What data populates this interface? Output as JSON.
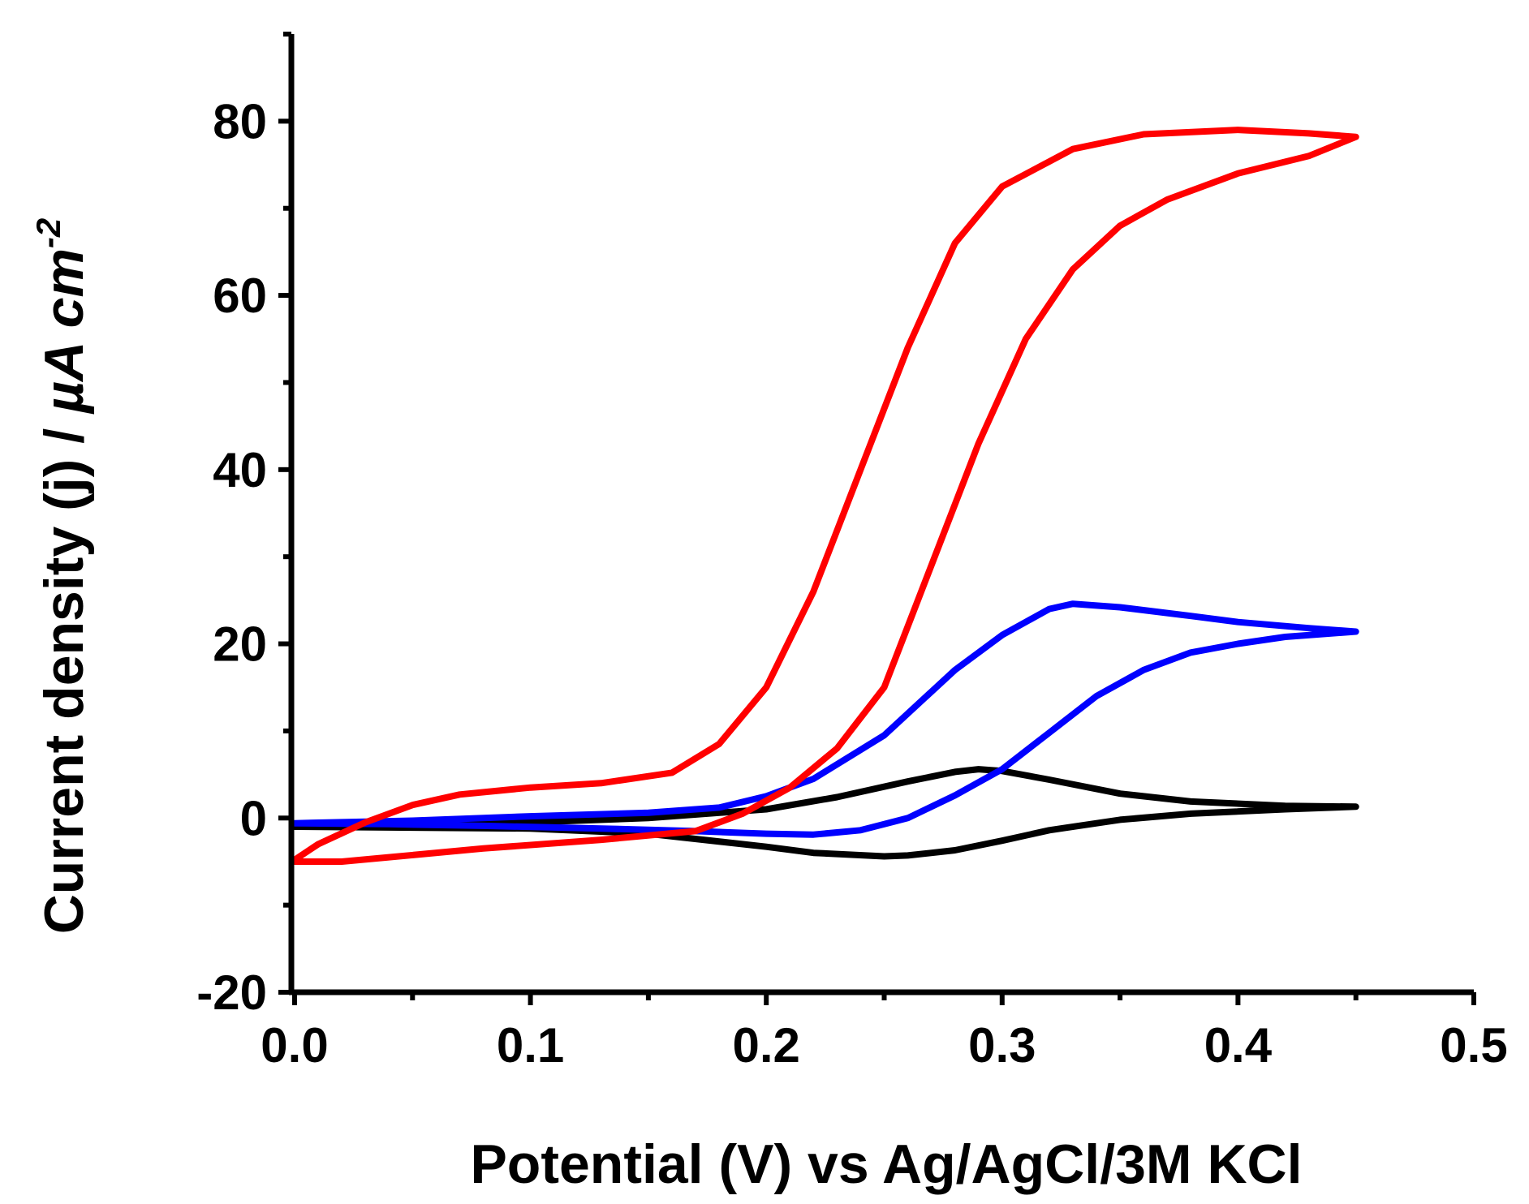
{
  "chart_data": {
    "type": "line",
    "title": "",
    "xlabel": "Potential (V) vs Ag/AgCl/3M KCl",
    "ylabel": {
      "main": "Current density (j) / ",
      "unit_mu": "µ",
      "unit_rest": "A cm",
      "unit_exp": "-2"
    },
    "xlim": [
      0.0,
      0.5
    ],
    "ylim": [
      -20,
      90
    ],
    "x_ticks": [
      {
        "value": 0.0,
        "label": "0.0"
      },
      {
        "value": 0.1,
        "label": "0.1"
      },
      {
        "value": 0.2,
        "label": "0.2"
      },
      {
        "value": 0.3,
        "label": "0.3"
      },
      {
        "value": 0.4,
        "label": "0.4"
      },
      {
        "value": 0.5,
        "label": "0.5"
      }
    ],
    "x_minor_ticks": [
      0.05,
      0.15,
      0.25,
      0.35,
      0.45
    ],
    "y_ticks": [
      {
        "value": -20,
        "label": "-20"
      },
      {
        "value": 0,
        "label": "0"
      },
      {
        "value": 20,
        "label": "20"
      },
      {
        "value": 40,
        "label": "40"
      },
      {
        "value": 60,
        "label": "60"
      },
      {
        "value": 80,
        "label": "80"
      }
    ],
    "y_minor_ticks": [
      -10,
      10,
      30,
      50,
      70,
      90
    ],
    "grid": false,
    "legend": "none",
    "series": [
      {
        "name": "black",
        "color": "#000000",
        "points": [
          [
            0.0,
            -0.8
          ],
          [
            0.05,
            -0.7
          ],
          [
            0.1,
            -0.5
          ],
          [
            0.15,
            0.0
          ],
          [
            0.2,
            1.0
          ],
          [
            0.23,
            2.4
          ],
          [
            0.26,
            4.2
          ],
          [
            0.28,
            5.3
          ],
          [
            0.29,
            5.6
          ],
          [
            0.3,
            5.4
          ],
          [
            0.32,
            4.4
          ],
          [
            0.35,
            2.8
          ],
          [
            0.38,
            1.9
          ],
          [
            0.42,
            1.4
          ],
          [
            0.45,
            1.3
          ],
          [
            0.42,
            1.0
          ],
          [
            0.38,
            0.5
          ],
          [
            0.35,
            -0.2
          ],
          [
            0.32,
            -1.4
          ],
          [
            0.3,
            -2.6
          ],
          [
            0.28,
            -3.7
          ],
          [
            0.26,
            -4.3
          ],
          [
            0.25,
            -4.4
          ],
          [
            0.22,
            -4.0
          ],
          [
            0.2,
            -3.3
          ],
          [
            0.15,
            -1.8
          ],
          [
            0.1,
            -1.2
          ],
          [
            0.05,
            -1.1
          ],
          [
            0.0,
            -1.0
          ]
        ]
      },
      {
        "name": "blue",
        "color": "#0000ff",
        "points": [
          [
            0.0,
            -0.6
          ],
          [
            0.05,
            -0.3
          ],
          [
            0.1,
            0.2
          ],
          [
            0.15,
            0.6
          ],
          [
            0.18,
            1.2
          ],
          [
            0.2,
            2.5
          ],
          [
            0.22,
            4.5
          ],
          [
            0.25,
            9.5
          ],
          [
            0.28,
            17.0
          ],
          [
            0.3,
            21.0
          ],
          [
            0.32,
            24.0
          ],
          [
            0.33,
            24.6
          ],
          [
            0.35,
            24.2
          ],
          [
            0.38,
            23.2
          ],
          [
            0.4,
            22.5
          ],
          [
            0.43,
            21.8
          ],
          [
            0.45,
            21.4
          ],
          [
            0.42,
            20.8
          ],
          [
            0.4,
            20.0
          ],
          [
            0.38,
            19.0
          ],
          [
            0.36,
            17.0
          ],
          [
            0.34,
            14.0
          ],
          [
            0.32,
            9.8
          ],
          [
            0.3,
            5.6
          ],
          [
            0.28,
            2.6
          ],
          [
            0.26,
            0.0
          ],
          [
            0.24,
            -1.4
          ],
          [
            0.22,
            -1.9
          ],
          [
            0.2,
            -1.8
          ],
          [
            0.17,
            -1.5
          ],
          [
            0.13,
            -1.2
          ],
          [
            0.08,
            -0.9
          ],
          [
            0.04,
            -0.7
          ],
          [
            0.0,
            -0.6
          ]
        ]
      },
      {
        "name": "red",
        "color": "#ff0000",
        "points": [
          [
            0.0,
            -4.8
          ],
          [
            0.01,
            -3.0
          ],
          [
            0.03,
            -0.5
          ],
          [
            0.05,
            1.5
          ],
          [
            0.07,
            2.7
          ],
          [
            0.1,
            3.5
          ],
          [
            0.13,
            4.0
          ],
          [
            0.16,
            5.2
          ],
          [
            0.18,
            8.5
          ],
          [
            0.2,
            15.0
          ],
          [
            0.22,
            26.0
          ],
          [
            0.24,
            40.0
          ],
          [
            0.26,
            54.0
          ],
          [
            0.28,
            66.0
          ],
          [
            0.3,
            72.5
          ],
          [
            0.33,
            76.8
          ],
          [
            0.36,
            78.5
          ],
          [
            0.4,
            79.0
          ],
          [
            0.43,
            78.6
          ],
          [
            0.45,
            78.2
          ],
          [
            0.43,
            76.0
          ],
          [
            0.4,
            74.0
          ],
          [
            0.37,
            71.0
          ],
          [
            0.35,
            68.0
          ],
          [
            0.33,
            63.0
          ],
          [
            0.31,
            55.0
          ],
          [
            0.29,
            43.0
          ],
          [
            0.27,
            29.0
          ],
          [
            0.25,
            15.0
          ],
          [
            0.23,
            8.0
          ],
          [
            0.21,
            3.5
          ],
          [
            0.19,
            0.5
          ],
          [
            0.17,
            -1.5
          ],
          [
            0.13,
            -2.5
          ],
          [
            0.08,
            -3.5
          ],
          [
            0.04,
            -4.5
          ],
          [
            0.02,
            -5.0
          ],
          [
            0.0,
            -5.0
          ]
        ]
      }
    ]
  }
}
